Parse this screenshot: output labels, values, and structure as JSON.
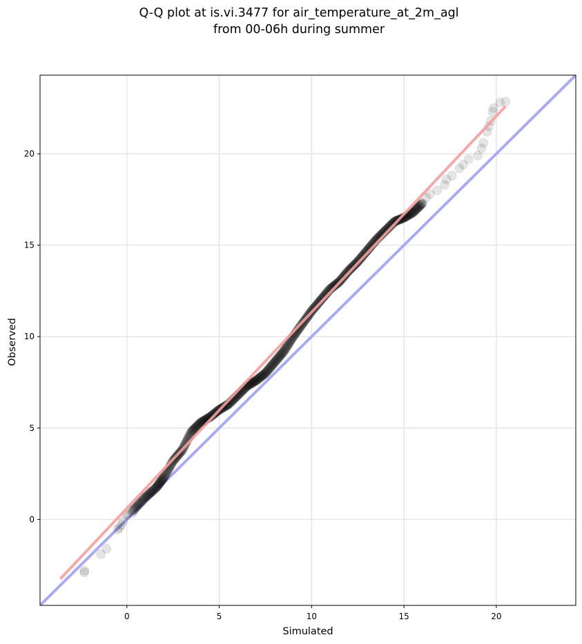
{
  "chart_data": {
    "type": "scatter",
    "title_line1": "Q-Q plot at is.vi.3477 for air_temperature_at_2m_agl",
    "title_line2": "from 00-06h during summer",
    "xlabel": "Simulated",
    "ylabel": "Observed",
    "xlim": [
      -4.7,
      24.3
    ],
    "ylim": [
      -4.7,
      24.3
    ],
    "xticks": [
      0,
      5,
      10,
      15,
      20
    ],
    "yticks": [
      0,
      5,
      10,
      15,
      20
    ],
    "grid": true,
    "identity_line": {
      "color": "#aaaaf0"
    },
    "fit_line": {
      "color": "#f3a0a0",
      "x": [
        -3.6,
        20.5
      ],
      "y": [
        -3.25,
        22.6
      ]
    },
    "marker_color": "#000000",
    "sparse_points": [
      [
        -2.3,
        -2.8
      ],
      [
        -2.3,
        -2.9
      ],
      [
        -1.4,
        -1.9
      ],
      [
        -1.1,
        -1.6
      ],
      [
        -0.5,
        -0.55
      ],
      [
        -0.4,
        -0.45
      ],
      [
        -0.3,
        -0.3
      ],
      [
        -0.2,
        -0.1
      ],
      [
        0.0,
        0.25
      ],
      [
        0.05,
        0.3
      ],
      [
        0.3,
        0.35
      ],
      [
        0.6,
        0.9
      ],
      [
        0.9,
        1.2
      ],
      [
        1.3,
        1.5
      ],
      [
        16.2,
        17.6
      ],
      [
        16.4,
        17.8
      ],
      [
        16.8,
        18.0
      ],
      [
        17.2,
        18.3
      ],
      [
        17.3,
        18.6
      ],
      [
        17.6,
        18.8
      ],
      [
        18.0,
        19.2
      ],
      [
        18.2,
        19.4
      ],
      [
        18.5,
        19.7
      ],
      [
        19.0,
        19.9
      ],
      [
        19.2,
        20.3
      ],
      [
        19.3,
        20.6
      ],
      [
        19.5,
        21.2
      ],
      [
        19.6,
        21.5
      ],
      [
        19.7,
        21.8
      ],
      [
        19.8,
        22.3
      ],
      [
        19.85,
        22.5
      ],
      [
        20.2,
        22.8
      ],
      [
        20.5,
        22.85
      ]
    ],
    "dense_curve": [
      [
        0.3,
        0.45
      ],
      [
        1.0,
        1.2
      ],
      [
        1.6,
        1.75
      ],
      [
        2.0,
        2.3
      ],
      [
        2.5,
        3.2
      ],
      [
        3.0,
        3.8
      ],
      [
        3.5,
        4.8
      ],
      [
        4.0,
        5.3
      ],
      [
        4.5,
        5.6
      ],
      [
        5.0,
        6.0
      ],
      [
        5.5,
        6.3
      ],
      [
        6.0,
        6.8
      ],
      [
        6.5,
        7.3
      ],
      [
        7.0,
        7.6
      ],
      [
        7.5,
        8.0
      ],
      [
        8.0,
        8.6
      ],
      [
        8.5,
        9.2
      ],
      [
        9.0,
        10.0
      ],
      [
        9.5,
        10.7
      ],
      [
        10.0,
        11.4
      ],
      [
        10.5,
        12.0
      ],
      [
        11.0,
        12.6
      ],
      [
        11.5,
        13.0
      ],
      [
        12.0,
        13.6
      ],
      [
        12.5,
        14.1
      ],
      [
        13.0,
        14.7
      ],
      [
        13.5,
        15.3
      ],
      [
        14.0,
        15.8
      ],
      [
        14.5,
        16.3
      ],
      [
        15.0,
        16.5
      ],
      [
        15.5,
        16.8
      ],
      [
        16.0,
        17.3
      ]
    ]
  }
}
